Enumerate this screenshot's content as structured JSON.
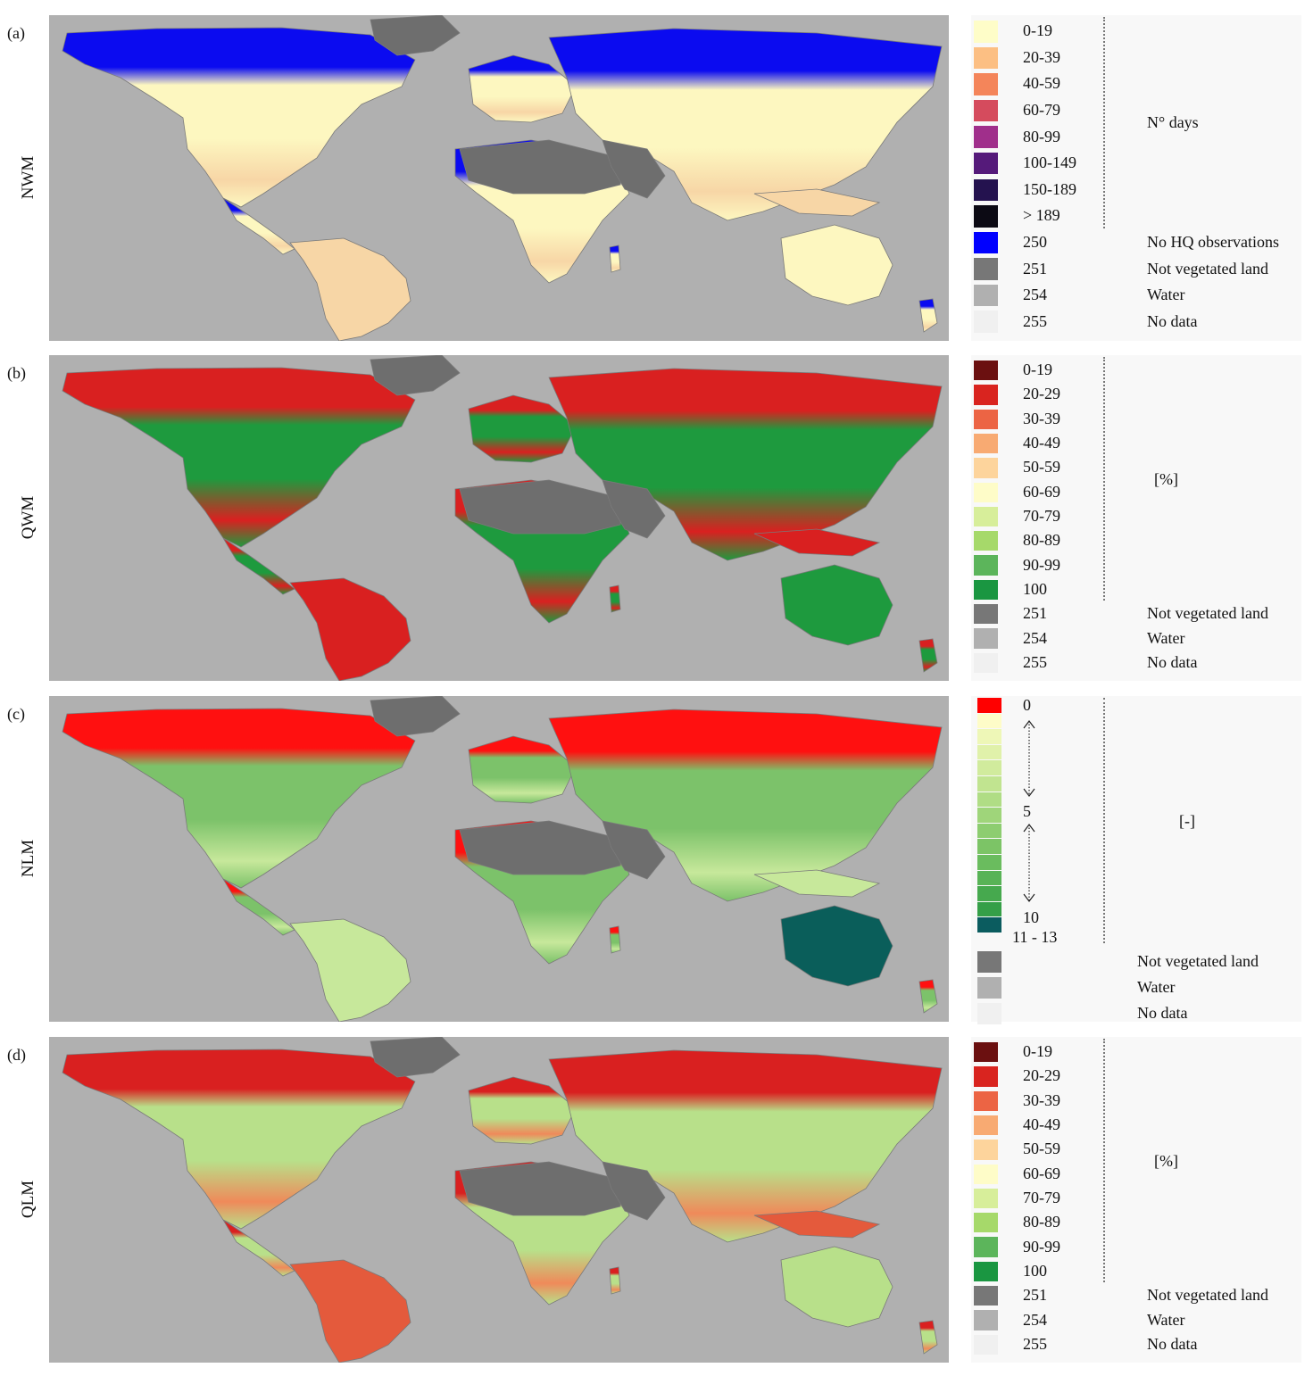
{
  "panels": [
    {
      "letter": "(a)",
      "name": "NWM",
      "unit": "N° days",
      "theme": {
        "land": "#fdf7c0",
        "north": "#0b0bf0",
        "south": "#f7d6a6",
        "hot": "#b03a7a"
      },
      "classes": [
        {
          "label": "0-19",
          "color": "#fefdc8"
        },
        {
          "label": "20-39",
          "color": "#fcbf83"
        },
        {
          "label": "40-59",
          "color": "#f4855a"
        },
        {
          "label": "60-79",
          "color": "#d54b5d"
        },
        {
          "label": "80-99",
          "color": "#a02f8b"
        },
        {
          "label": "100-149",
          "color": "#551a7a"
        },
        {
          "label": "150-189",
          "color": "#24124f"
        },
        {
          "label": "> 189",
          "color": "#0c0a14"
        }
      ],
      "special": [
        {
          "value": "250",
          "label": "No HQ observations",
          "color": "#0000ff"
        },
        {
          "value": "251",
          "label": "Not vegetated land",
          "color": "#777777"
        },
        {
          "value": "254",
          "label": "Water",
          "color": "#b0b0b0"
        },
        {
          "value": "255",
          "label": "No data",
          "color": "#f0f0f0"
        }
      ]
    },
    {
      "letter": "(b)",
      "name": "QWM",
      "unit": "[%]",
      "theme": {
        "land": "#1e9a3e",
        "north": "#d92020",
        "south": "#d92020",
        "hot": "#d92020"
      },
      "classes": [
        {
          "label": "0-19",
          "color": "#6b1010"
        },
        {
          "label": "20-29",
          "color": "#d9241f"
        },
        {
          "label": "30-39",
          "color": "#ec6444"
        },
        {
          "label": "40-49",
          "color": "#f8aa72"
        },
        {
          "label": "50-59",
          "color": "#fdd49c"
        },
        {
          "label": "60-69",
          "color": "#fefcc8"
        },
        {
          "label": "70-79",
          "color": "#d7ee9a"
        },
        {
          "label": "80-89",
          "color": "#a6d96a"
        },
        {
          "label": "90-99",
          "color": "#5cb55b"
        },
        {
          "label": "100",
          "color": "#1a9641"
        }
      ],
      "special": [
        {
          "value": "251",
          "label": "Not vegetated land",
          "color": "#777777"
        },
        {
          "value": "254",
          "label": "Water",
          "color": "#b0b0b0"
        },
        {
          "value": "255",
          "label": "No data",
          "color": "#f0f0f0"
        }
      ]
    },
    {
      "letter": "(c)",
      "name": "NLM",
      "unit": "[-]",
      "theme": {
        "land": "#7cc26a",
        "north": "#ff1010",
        "south": "#c7e89b",
        "hot": "#0a5e5a"
      },
      "ramp": {
        "labels": [
          "0",
          "5",
          "10",
          "11 - 13"
        ],
        "colors": [
          "#ff0000",
          "#fefcc8",
          "#eef7b7",
          "#e0f1aa",
          "#d1eb9d",
          "#c1e490",
          "#b0dd85",
          "#9fd57a",
          "#8dcd70",
          "#7cc466",
          "#6abc5e",
          "#58b356",
          "#46a94e",
          "#359f47",
          "#0b5c5f"
        ]
      },
      "special": [
        {
          "value": "",
          "label": "Not vegetated land",
          "color": "#777777"
        },
        {
          "value": "",
          "label": "Water",
          "color": "#b0b0b0"
        },
        {
          "value": "",
          "label": "No data",
          "color": "#f0f0f0"
        }
      ]
    },
    {
      "letter": "(d)",
      "name": "QLM",
      "unit": "[%]",
      "theme": {
        "land": "#b8e08a",
        "north": "#d92020",
        "south": "#ef8a5a",
        "hot": "#e45a3c"
      },
      "classes": [
        {
          "label": "0-19",
          "color": "#6b1010"
        },
        {
          "label": "20-29",
          "color": "#d9241f"
        },
        {
          "label": "30-39",
          "color": "#ec6444"
        },
        {
          "label": "40-49",
          "color": "#f8aa72"
        },
        {
          "label": "50-59",
          "color": "#fdd49c"
        },
        {
          "label": "60-69",
          "color": "#fefcc8"
        },
        {
          "label": "70-79",
          "color": "#d7ee9a"
        },
        {
          "label": "80-89",
          "color": "#a6d96a"
        },
        {
          "label": "90-99",
          "color": "#5cb55b"
        },
        {
          "label": "100",
          "color": "#1a9641"
        }
      ],
      "special": [
        {
          "value": "251",
          "label": "Not vegetated land",
          "color": "#777777"
        },
        {
          "value": "254",
          "label": "Water",
          "color": "#b0b0b0"
        },
        {
          "value": "255",
          "label": "No data",
          "color": "#f0f0f0"
        }
      ]
    }
  ]
}
